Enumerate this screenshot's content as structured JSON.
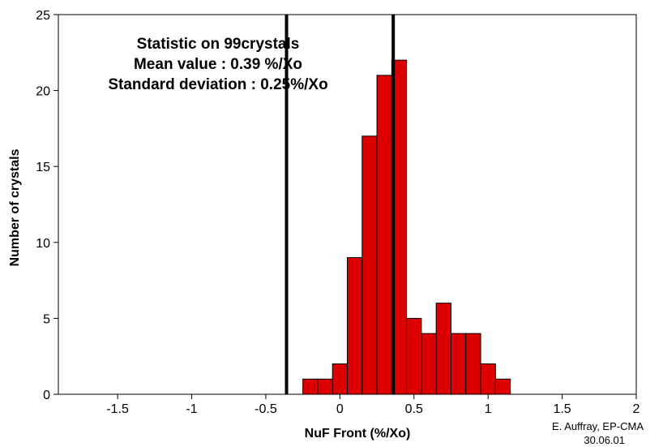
{
  "chart_data": {
    "type": "bar",
    "xlabel": "NuF Front (%/Xo)",
    "ylabel": "Number of crystals",
    "xlim": [
      -1.9,
      2.0
    ],
    "ylim": [
      0,
      25
    ],
    "x_ticks": [
      -1.5,
      -1,
      -0.5,
      0,
      0.5,
      1,
      1.5,
      2
    ],
    "x_tick_labels": [
      "-1.5",
      "-1",
      "-0.5",
      "0",
      "0.5",
      "1",
      "1.5",
      "2"
    ],
    "y_ticks": [
      0,
      5,
      10,
      15,
      20,
      25
    ],
    "y_tick_labels": [
      "0",
      "5",
      "10",
      "15",
      "20",
      "25"
    ],
    "bin_width": 0.1,
    "bins": [
      {
        "x0": -0.25,
        "x1": -0.15,
        "count": 1
      },
      {
        "x0": -0.15,
        "x1": -0.05,
        "count": 1
      },
      {
        "x0": -0.05,
        "x1": 0.05,
        "count": 2
      },
      {
        "x0": 0.05,
        "x1": 0.15,
        "count": 9
      },
      {
        "x0": 0.15,
        "x1": 0.25,
        "count": 17
      },
      {
        "x0": 0.25,
        "x1": 0.35,
        "count": 21
      },
      {
        "x0": 0.35,
        "x1": 0.45,
        "count": 22
      },
      {
        "x0": 0.45,
        "x1": 0.55,
        "count": 5
      },
      {
        "x0": 0.55,
        "x1": 0.65,
        "count": 4
      },
      {
        "x0": 0.65,
        "x1": 0.75,
        "count": 6
      },
      {
        "x0": 0.75,
        "x1": 0.85,
        "count": 4
      },
      {
        "x0": 0.85,
        "x1": 0.95,
        "count": 4
      },
      {
        "x0": 0.95,
        "x1": 1.05,
        "count": 2
      },
      {
        "x0": 1.05,
        "x1": 1.15,
        "count": 1
      }
    ],
    "vertical_lines": [
      -0.36,
      0.36
    ],
    "annotations": [
      "Statistic on 99crystals",
      "Mean value : 0.39 %/Xo",
      "Standard deviation : 0.25%/Xo"
    ],
    "bar_color": "#dd0000",
    "bar_edge_color": "#000000",
    "line_color": "#000000",
    "grid": false
  },
  "credit": {
    "author": "E. Auffray, EP-CMA",
    "date": "30.06.01"
  }
}
